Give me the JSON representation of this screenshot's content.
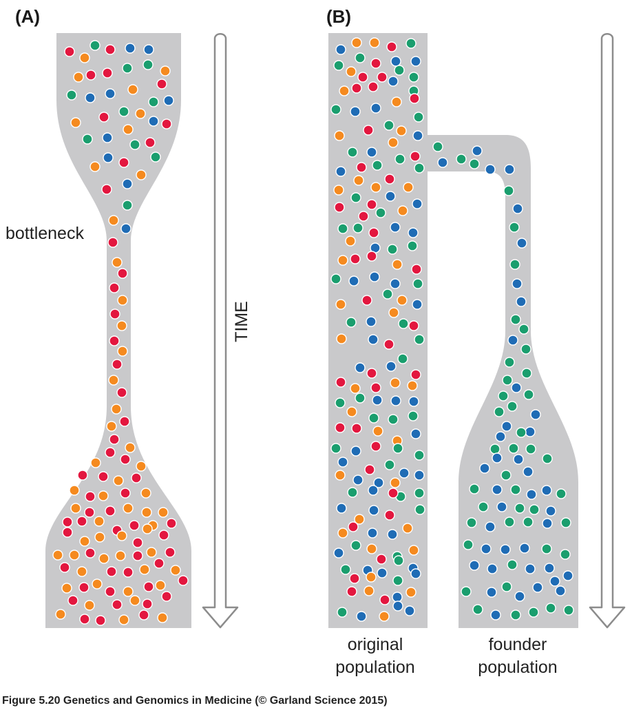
{
  "panels": {
    "a": {
      "label": "(A)",
      "bottleneck_label": "bottleneck",
      "time_label": "TIME"
    },
    "b": {
      "label": "(B)",
      "original_label_line1": "original",
      "original_label_line2": "population",
      "founder_label_line1": "founder",
      "founder_label_line2": "population"
    }
  },
  "caption": "Figure 5.20  Genetics and Genomics in Medicine (© Garland Science 2015)",
  "colors": {
    "shape_fill": "#c9c9cb",
    "red": "#e3173f",
    "orange": "#f58a1f",
    "blue": "#1f6cb5",
    "green": "#1a9e6e",
    "arrow_stroke": "#8c8c8c"
  }
}
